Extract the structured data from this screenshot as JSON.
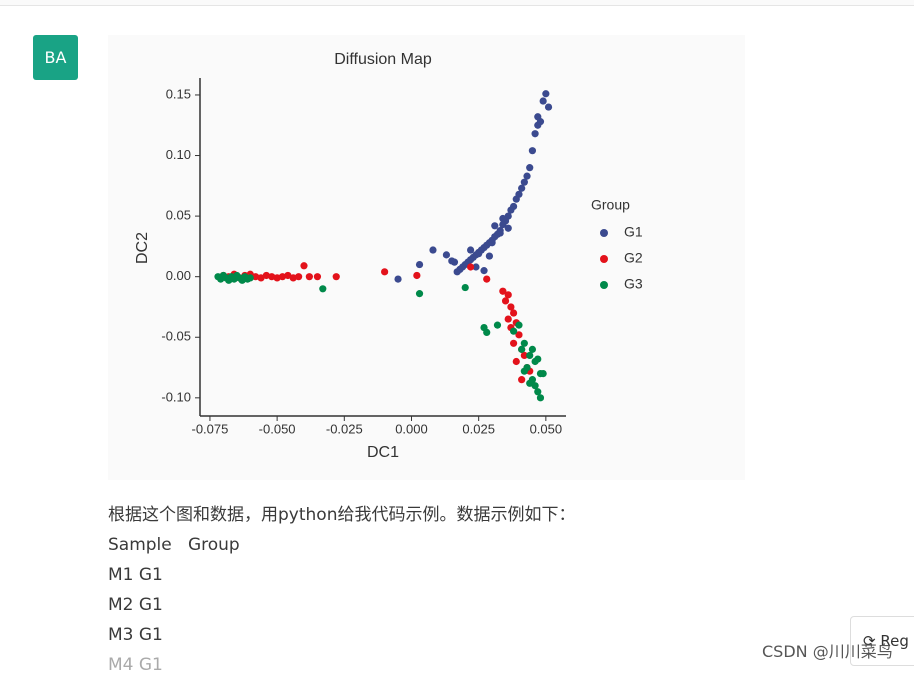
{
  "avatar": "BA",
  "chart_data": {
    "type": "scatter",
    "title": "Diffusion Map",
    "x_label": "DC1",
    "y_label": "DC2",
    "legend_title": "Group",
    "legend": "right",
    "xlim": [
      -0.0787,
      0.0575
    ],
    "ylim": [
      -0.115,
      0.164
    ],
    "xticks": [
      -0.075,
      {
        "value": -0.05,
        "label": "-0.050"
      },
      -0.025,
      {
        "value": 0,
        "label": "0.000"
      },
      0.025,
      {
        "value": 0.05,
        "label": "0.050"
      }
    ],
    "yticks": [
      {
        "value": -0.1,
        "label": "-0.10"
      },
      -0.05,
      {
        "value": 0,
        "label": "0.00"
      },
      0.05,
      {
        "value": 0.1,
        "label": "0.10"
      },
      0.15
    ],
    "series": [
      {
        "name": "G1",
        "color": "#3b4a8f",
        "x": [
          0.05,
          0.049,
          0.051,
          0.048,
          0.047,
          0.046,
          0.045,
          0.047,
          0.044,
          0.043,
          0.042,
          0.041,
          0.04,
          0.039,
          0.038,
          0.037,
          0.036,
          0.035,
          0.034,
          0.036,
          0.033,
          0.032,
          0.031,
          0.03,
          0.029,
          0.028,
          0.027,
          0.026,
          0.025,
          0.024,
          0.023,
          0.022,
          0.021,
          0.02,
          0.019,
          0.018,
          0.017,
          0.016,
          0.024,
          0.027,
          0.03,
          0.033,
          0.022,
          0.025,
          0.015,
          0.013,
          0.008,
          -0.005,
          0.003,
          0.029,
          0.031,
          0.034
        ],
        "values": [
          0.151,
          0.145,
          0.14,
          0.128,
          0.125,
          0.118,
          0.104,
          0.132,
          0.09,
          0.083,
          0.078,
          0.073,
          0.068,
          0.064,
          0.058,
          0.055,
          0.05,
          0.046,
          0.043,
          0.04,
          0.038,
          0.035,
          0.033,
          0.03,
          0.028,
          0.026,
          0.024,
          0.022,
          0.02,
          0.018,
          0.016,
          0.014,
          0.012,
          0.01,
          0.008,
          0.006,
          0.004,
          0.012,
          0.008,
          0.005,
          0.028,
          0.036,
          0.022,
          0.019,
          0.013,
          0.018,
          0.022,
          -0.002,
          0.01,
          0.017,
          0.042,
          0.048
        ]
      },
      {
        "name": "G2",
        "color": "#e3121b",
        "x": [
          -0.07,
          -0.068,
          -0.066,
          -0.064,
          -0.062,
          -0.06,
          -0.058,
          -0.056,
          -0.054,
          -0.052,
          -0.05,
          -0.048,
          -0.046,
          -0.044,
          -0.042,
          -0.04,
          -0.038,
          -0.035,
          -0.028,
          -0.01,
          0.002,
          0.022,
          0.028,
          0.034,
          0.036,
          0.035,
          0.037,
          0.038,
          0.036,
          0.039,
          0.037,
          0.04,
          0.038,
          0.041,
          0.042,
          0.039,
          0.043,
          0.044,
          0.041
        ],
        "values": [
          0.001,
          0.0,
          0.002,
          -0.001,
          0.001,
          0.002,
          0.0,
          -0.001,
          0.001,
          0.0,
          -0.001,
          0.0,
          0.001,
          -0.001,
          0.0,
          0.009,
          0.0,
          0.0,
          0.0,
          0.004,
          0.001,
          0.008,
          -0.002,
          -0.012,
          -0.015,
          -0.02,
          -0.025,
          -0.03,
          -0.035,
          -0.038,
          -0.042,
          -0.048,
          -0.055,
          -0.06,
          -0.065,
          -0.07,
          -0.075,
          -0.078,
          -0.085
        ]
      },
      {
        "name": "G3",
        "color": "#00894a",
        "x": [
          -0.072,
          -0.071,
          -0.07,
          -0.069,
          -0.068,
          -0.067,
          -0.066,
          -0.065,
          -0.064,
          -0.063,
          -0.062,
          -0.061,
          -0.06,
          -0.033,
          0.003,
          0.02,
          0.027,
          0.028,
          0.032,
          0.038,
          0.04,
          0.042,
          0.041,
          0.044,
          0.045,
          0.046,
          0.043,
          0.047,
          0.048,
          0.045,
          0.046,
          0.049,
          0.047,
          0.048,
          0.044,
          0.042
        ],
        "values": [
          0.0,
          -0.002,
          0.001,
          -0.001,
          -0.003,
          0.0,
          -0.002,
          0.001,
          -0.001,
          -0.003,
          0.0,
          -0.002,
          -0.001,
          -0.01,
          -0.014,
          -0.009,
          -0.042,
          -0.046,
          -0.04,
          -0.045,
          -0.04,
          -0.055,
          -0.06,
          -0.065,
          -0.06,
          -0.07,
          -0.075,
          -0.068,
          -0.08,
          -0.085,
          -0.09,
          -0.08,
          -0.095,
          -0.1,
          -0.088,
          -0.078
        ]
      }
    ]
  },
  "message": {
    "lines": [
      "根据这个图和数据，用python给我代码示例。数据示例如下：",
      "Sample   Group",
      "M1 G1",
      "M2 G1",
      "M3 G1",
      "M4 G1"
    ]
  },
  "regenerate_button": "Reg",
  "watermark": "CSDN @川川菜鸟"
}
